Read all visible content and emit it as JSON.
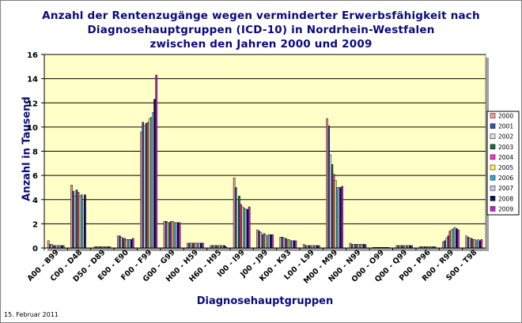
{
  "chart_data": {
    "type": "bar",
    "title": [
      "Anzahl der Rentenzugänge wegen verminderter Erwerbsfähigkeit nach",
      "Diagnosehauptgruppen (ICD-10) in Nordrhein-Westfalen",
      "zwischen den Jahren 2000 und 2009"
    ],
    "xlabel": "Diagnosehauptgruppen",
    "ylabel": "Anzahl in Tausend",
    "ylim": [
      0,
      16
    ],
    "yticks": [
      0,
      2,
      4,
      6,
      8,
      10,
      12,
      14,
      16
    ],
    "grid": true,
    "legend_position": "right",
    "categories": [
      "A00 - B99",
      "C00 - D48",
      "D50 - D89",
      "E00 - E90",
      "F00 - F99",
      "G00 - G99",
      "H00 - H59",
      "H60 - H95",
      "I00 - I99",
      "J00 - J99",
      "K00 - K93",
      "L00 - L99",
      "M00 - M99",
      "N00 - N99",
      "O00 - O99",
      "Q00 - Q99",
      "P00 - P96",
      "R00 - R99",
      "S00 - T98"
    ],
    "series": [
      {
        "name": "2000",
        "color": "#ff9999",
        "values": [
          0.6,
          5.2,
          0.1,
          1.0,
          9.6,
          2.2,
          0.4,
          0.2,
          5.8,
          1.5,
          0.9,
          0.3,
          10.7,
          0.4,
          0.05,
          0.2,
          0.1,
          0.5,
          1.0
        ]
      },
      {
        "name": "2001",
        "color": "#3355aa",
        "values": [
          0.3,
          4.7,
          0.1,
          1.0,
          10.4,
          2.2,
          0.4,
          0.2,
          5.0,
          1.4,
          0.9,
          0.2,
          10.1,
          0.3,
          0.05,
          0.2,
          0.1,
          0.6,
          0.9
        ]
      },
      {
        "name": "2002",
        "color": "#e0e0e0",
        "values": [
          0.3,
          4.3,
          0.1,
          0.9,
          10.1,
          2.1,
          0.4,
          0.2,
          4.0,
          1.3,
          0.8,
          0.2,
          7.7,
          0.3,
          0.05,
          0.2,
          0.1,
          0.8,
          0.8
        ]
      },
      {
        "name": "2003",
        "color": "#1a6b3c",
        "values": [
          0.2,
          4.8,
          0.1,
          0.8,
          10.3,
          2.1,
          0.4,
          0.2,
          4.3,
          1.1,
          0.8,
          0.2,
          6.9,
          0.3,
          0.05,
          0.2,
          0.1,
          1.0,
          0.8
        ]
      },
      {
        "name": "2004",
        "color": "#ff33cc",
        "values": [
          0.2,
          4.6,
          0.1,
          0.8,
          10.4,
          2.2,
          0.4,
          0.2,
          3.6,
          1.2,
          0.7,
          0.2,
          6.1,
          0.3,
          0.05,
          0.2,
          0.1,
          1.4,
          0.7
        ]
      },
      {
        "name": "2005",
        "color": "#f5f54a",
        "values": [
          0.2,
          4.3,
          0.1,
          0.7,
          10.7,
          2.2,
          0.4,
          0.2,
          3.4,
          1.1,
          0.7,
          0.2,
          5.6,
          0.3,
          0.05,
          0.2,
          0.1,
          1.5,
          0.7
        ]
      },
      {
        "name": "2006",
        "color": "#33aadd",
        "values": [
          0.2,
          4.4,
          0.1,
          0.7,
          10.8,
          2.1,
          0.4,
          0.2,
          3.3,
          1.0,
          0.6,
          0.2,
          5.0,
          0.3,
          0.05,
          0.2,
          0.1,
          1.6,
          0.6
        ]
      },
      {
        "name": "2007",
        "color": "#c8c8f0",
        "values": [
          0.2,
          4.0,
          0.1,
          0.7,
          11.2,
          2.1,
          0.4,
          0.2,
          3.2,
          1.1,
          0.6,
          0.2,
          5.0,
          0.3,
          0.05,
          0.2,
          0.1,
          1.7,
          0.7
        ]
      },
      {
        "name": "2008",
        "color": "#10105a",
        "values": [
          0.2,
          4.4,
          0.1,
          0.7,
          12.3,
          2.1,
          0.4,
          0.2,
          3.2,
          1.1,
          0.6,
          0.2,
          5.0,
          0.3,
          0.05,
          0.2,
          0.1,
          1.6,
          0.6
        ]
      },
      {
        "name": "2009",
        "color": "#cc22cc",
        "values": [
          0.2,
          0.0,
          0.1,
          0.8,
          14.3,
          2.1,
          0.4,
          0.1,
          3.4,
          1.1,
          0.6,
          0.2,
          5.1,
          0.3,
          0.05,
          0.2,
          0.1,
          1.5,
          0.7
        ]
      }
    ]
  },
  "footer": {
    "date": "15. Februar 2011"
  }
}
